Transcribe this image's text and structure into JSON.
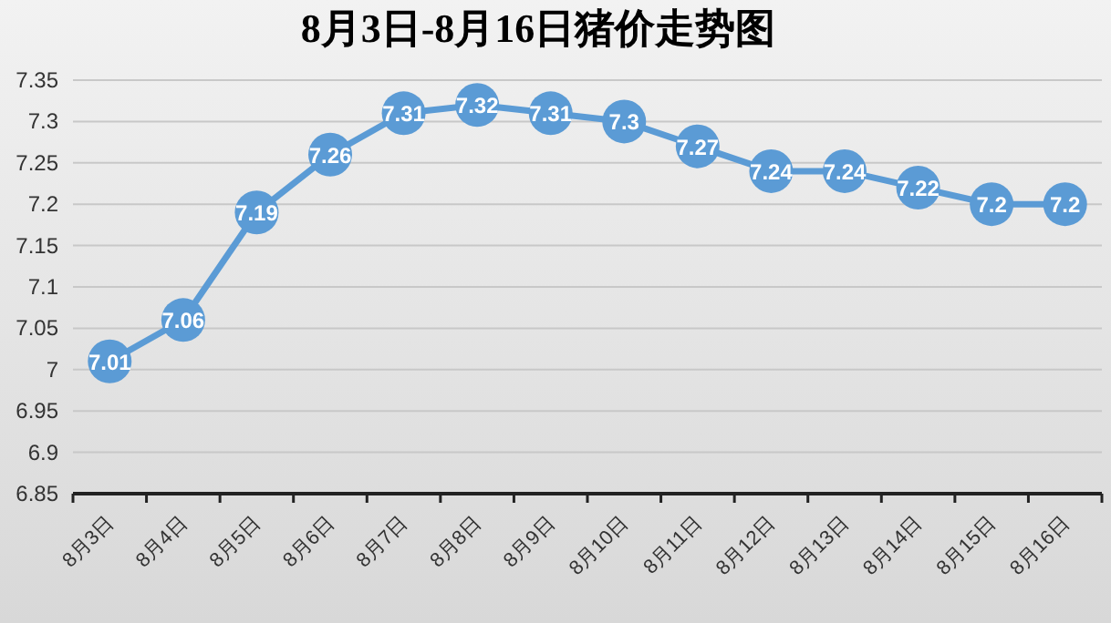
{
  "chart_data": {
    "type": "line",
    "title": "8月3日-8月16日猪价走势图",
    "categories": [
      "8月3日",
      "8月4日",
      "8月5日",
      "8月6日",
      "8月7日",
      "8月8日",
      "8月9日",
      "8月10日",
      "8月11日",
      "8月12日",
      "8月13日",
      "8月14日",
      "8月15日",
      "8月16日"
    ],
    "values": [
      7.01,
      7.06,
      7.19,
      7.26,
      7.31,
      7.32,
      7.31,
      7.3,
      7.27,
      7.24,
      7.24,
      7.22,
      7.2,
      7.2
    ],
    "color": "#5b9bd5",
    "ylim": [
      6.85,
      7.35
    ],
    "yticks": [
      6.85,
      6.9,
      6.95,
      7,
      7.05,
      7.1,
      7.15,
      7.2,
      7.25,
      7.3,
      7.35
    ],
    "grid": "y",
    "marker": "circle",
    "line_style": "solid",
    "data_labels": true
  }
}
